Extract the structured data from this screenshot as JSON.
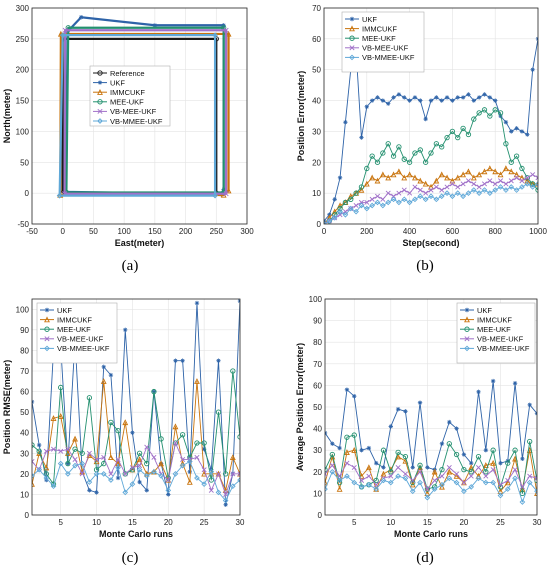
{
  "colors": {
    "reference": "#1a1a1a",
    "ukf": "#2e63a8",
    "immcukf": "#c9740d",
    "meeukf": "#23906f",
    "vbmeeukf": "#a070c8",
    "vbmmeeukf": "#5fa8d8"
  },
  "chart_data": [
    {
      "type": "line",
      "panel_label": "(a)",
      "xlabel": "East(meter)",
      "ylabel": "North(meter)",
      "xlim": [
        -50,
        300
      ],
      "ylim": [
        -50,
        300
      ],
      "xticks": [
        "-50",
        "0",
        "50",
        "100",
        "150",
        "200",
        "250",
        "300"
      ],
      "yticks": [
        "-50",
        "0",
        "50",
        "100",
        "150",
        "200",
        "250",
        "300"
      ],
      "grid": true,
      "legend": "middle",
      "series": [
        {
          "name": "Reference",
          "color_key": "reference",
          "marker": "circle",
          "x": [
            0,
            0,
            250,
            250,
            0
          ],
          "y": [
            0,
            250,
            250,
            0,
            0
          ]
        },
        {
          "name": "UKF",
          "color_key": "ukf",
          "marker": "star",
          "x": [
            5,
            8,
            30,
            150,
            262,
            262,
            258,
            5
          ],
          "y": [
            2,
            262,
            285,
            272,
            272,
            6,
            -2,
            2
          ]
        },
        {
          "name": "IMMCUKF",
          "color_key": "immcukf",
          "marker": "triangle",
          "x": [
            -4,
            -3,
            270,
            270,
            262,
            -4
          ],
          "y": [
            -3,
            258,
            258,
            4,
            -3,
            -3
          ]
        },
        {
          "name": "MEE-UKF",
          "color_key": "meeukf",
          "marker": "circle",
          "x": [
            6,
            9,
            262,
            262,
            6
          ],
          "y": [
            1,
            268,
            268,
            1,
            1
          ]
        },
        {
          "name": "VB-MEE-UKF",
          "color_key": "vbmeeukf",
          "marker": "x",
          "x": [
            3,
            4,
            266,
            266,
            3
          ],
          "y": [
            -1,
            264,
            264,
            -1,
            -1
          ]
        },
        {
          "name": "VB-MMEE-UKF",
          "color_key": "vbmmeeukf",
          "marker": "diamond",
          "x": [
            -5,
            0,
            248,
            248,
            -5
          ],
          "y": [
            -4,
            256,
            256,
            -4,
            -4
          ]
        }
      ]
    },
    {
      "type": "line",
      "panel_label": "(b)",
      "xlabel": "Step(second)",
      "ylabel": "Position Error(meter)",
      "xlim": [
        0,
        1000
      ],
      "ylim": [
        0,
        70
      ],
      "xticks": [
        "0",
        "200",
        "400",
        "600",
        "800",
        "1000"
      ],
      "yticks": [
        "0",
        "10",
        "20",
        "30",
        "40",
        "50",
        "60",
        "70"
      ],
      "grid": true,
      "legend": "top-left",
      "x": [
        0,
        25,
        50,
        75,
        100,
        125,
        150,
        175,
        200,
        225,
        250,
        275,
        300,
        325,
        350,
        375,
        400,
        425,
        450,
        475,
        500,
        525,
        550,
        575,
        600,
        625,
        650,
        675,
        700,
        725,
        750,
        775,
        800,
        825,
        850,
        875,
        900,
        925,
        950,
        975,
        1000
      ],
      "series": [
        {
          "name": "UKF",
          "color_key": "ukf",
          "marker": "star",
          "values": [
            1,
            3,
            8,
            15,
            33,
            50,
            56,
            28,
            38,
            40,
            41,
            40,
            39,
            41,
            42,
            41,
            40,
            41,
            40,
            34,
            40,
            41,
            40,
            41,
            40,
            41,
            41,
            42,
            40,
            41,
            42,
            41,
            40,
            35,
            33,
            30,
            31,
            30,
            29,
            50,
            60
          ]
        },
        {
          "name": "IMMCUKF",
          "color_key": "immcukf",
          "marker": "triangle",
          "values": [
            0,
            2,
            4,
            6,
            7,
            9,
            10,
            11,
            13,
            15,
            14,
            16,
            15,
            16,
            17,
            15,
            16,
            15,
            14,
            13,
            12,
            14,
            16,
            15,
            14,
            15,
            16,
            17,
            15,
            16,
            17,
            18,
            17,
            16,
            18,
            17,
            16,
            15,
            14,
            13,
            13
          ]
        },
        {
          "name": "MEE-UKF",
          "color_key": "meeukf",
          "marker": "circle",
          "values": [
            0,
            1,
            3,
            5,
            7,
            8,
            10,
            12,
            18,
            22,
            20,
            23,
            26,
            22,
            25,
            21,
            20,
            23,
            24,
            20,
            23,
            26,
            25,
            28,
            30,
            28,
            31,
            29,
            34,
            36,
            37,
            35,
            37,
            36,
            26,
            20,
            22,
            18,
            15,
            13,
            11
          ]
        },
        {
          "name": "VB-MEE-UKF",
          "color_key": "vbmeeukf",
          "marker": "x",
          "values": [
            0,
            1,
            2,
            3,
            4,
            5,
            6,
            7,
            7,
            8,
            9,
            8,
            10,
            9,
            10,
            11,
            10,
            12,
            11,
            10,
            11,
            12,
            11,
            12,
            13,
            12,
            13,
            14,
            13,
            12,
            13,
            14,
            13,
            14,
            13,
            14,
            15,
            14,
            15,
            16,
            15
          ]
        },
        {
          "name": "VB-MMEE-UKF",
          "color_key": "vbmmeeukf",
          "marker": "diamond",
          "values": [
            0,
            1,
            2,
            4,
            3,
            5,
            4,
            6,
            5,
            6,
            7,
            6,
            7,
            8,
            7,
            8,
            7,
            8,
            9,
            8,
            9,
            8,
            9,
            10,
            9,
            10,
            9,
            10,
            11,
            10,
            11,
            10,
            11,
            12,
            11,
            12,
            11,
            12,
            13,
            12,
            13
          ]
        }
      ]
    },
    {
      "type": "line",
      "panel_label": "(c)",
      "xlabel": "Monte Carlo runs",
      "ylabel": "Position RMSE(meter)",
      "xlim": [
        1,
        30
      ],
      "ylim": [
        0,
        105
      ],
      "xticks": [
        "5",
        "10",
        "15",
        "20",
        "25",
        "30"
      ],
      "yticks": [
        "0",
        "10",
        "20",
        "30",
        "40",
        "50",
        "60",
        "70",
        "80",
        "90",
        "100"
      ],
      "grid": true,
      "legend": "top-left",
      "x": [
        1,
        2,
        3,
        4,
        5,
        6,
        7,
        8,
        9,
        10,
        11,
        12,
        13,
        14,
        15,
        16,
        17,
        18,
        19,
        20,
        21,
        22,
        23,
        24,
        25,
        26,
        27,
        28,
        29,
        30
      ],
      "series": [
        {
          "name": "UKF",
          "color_key": "ukf",
          "marker": "star",
          "values": [
            55,
            34,
            17,
            80,
            82,
            25,
            85,
            21,
            12,
            11,
            72,
            68,
            18,
            90,
            40,
            16,
            12,
            60,
            25,
            10,
            75,
            75,
            21,
            103,
            32,
            22,
            75,
            5,
            20,
            104
          ]
        },
        {
          "name": "IMMCUKF",
          "color_key": "immcukf",
          "marker": "triangle",
          "values": [
            15,
            30,
            23,
            47,
            48,
            30,
            37,
            21,
            29,
            26,
            65,
            28,
            25,
            45,
            22,
            27,
            20,
            21,
            25,
            17,
            43,
            25,
            16,
            65,
            20,
            20,
            20,
            12,
            28,
            20
          ]
        },
        {
          "name": "MEE-UKF",
          "color_key": "meeukf",
          "marker": "circle",
          "values": [
            34,
            31,
            20,
            15,
            62,
            25,
            32,
            30,
            57,
            22,
            25,
            45,
            41,
            20,
            22,
            30,
            25,
            60,
            37,
            18,
            35,
            39,
            28,
            35,
            35,
            17,
            50,
            20,
            70,
            38
          ]
        },
        {
          "name": "VB-MEE-UKF",
          "color_key": "vbmeeukf",
          "marker": "x",
          "values": [
            26,
            22,
            31,
            32,
            31,
            32,
            27,
            20,
            30,
            27,
            28,
            20,
            27,
            20,
            23,
            24,
            33,
            28,
            20,
            17,
            35,
            27,
            27,
            28,
            22,
            12,
            20,
            10,
            20,
            20
          ]
        },
        {
          "name": "VB-MMEE-UKF",
          "color_key": "vbmmeeukf",
          "marker": "diamond",
          "values": [
            19,
            22,
            18,
            14,
            25,
            20,
            24,
            25,
            16,
            20,
            20,
            17,
            23,
            11,
            15,
            22,
            19,
            21,
            19,
            12,
            20,
            24,
            26,
            18,
            15,
            21,
            11,
            7,
            14,
            17
          ]
        }
      ]
    },
    {
      "type": "line",
      "panel_label": "(d)",
      "xlabel": "Monte Carlo runs",
      "ylabel": "Average Position Error(meter)",
      "xlim": [
        1,
        30
      ],
      "ylim": [
        0,
        100
      ],
      "xticks": [
        "5",
        "10",
        "15",
        "20",
        "25",
        "30"
      ],
      "yticks": [
        "0",
        "10",
        "20",
        "30",
        "40",
        "50",
        "60",
        "70",
        "80",
        "90",
        "100"
      ],
      "grid": true,
      "legend": "top-right",
      "x": [
        1,
        2,
        3,
        4,
        5,
        6,
        7,
        8,
        9,
        10,
        11,
        12,
        13,
        14,
        15,
        16,
        17,
        18,
        19,
        20,
        21,
        22,
        23,
        24,
        25,
        26,
        27,
        28,
        29,
        30
      ],
      "series": [
        {
          "name": "UKF",
          "color_key": "ukf",
          "marker": "star",
          "values": [
            38,
            33,
            31,
            58,
            55,
            30,
            31,
            24,
            22,
            41,
            49,
            48,
            22,
            52,
            22,
            21,
            33,
            43,
            40,
            28,
            24,
            57,
            30,
            62,
            24,
            25,
            61,
            26,
            51,
            47
          ]
        },
        {
          "name": "IMMCUKF",
          "color_key": "immcukf",
          "marker": "triangle",
          "values": [
            15,
            27,
            12,
            29,
            30,
            18,
            22,
            12,
            19,
            21,
            27,
            25,
            14,
            22,
            10,
            20,
            13,
            20,
            18,
            15,
            22,
            18,
            23,
            24,
            11,
            15,
            26,
            12,
            30,
            10
          ]
        },
        {
          "name": "MEE-UKF",
          "color_key": "meeukf",
          "marker": "circle",
          "values": [
            21,
            28,
            15,
            36,
            37,
            13,
            14,
            16,
            30,
            20,
            29,
            27,
            15,
            23,
            12,
            13,
            21,
            33,
            28,
            21,
            20,
            27,
            20,
            30,
            13,
            24,
            30,
            10,
            34,
            16
          ]
        },
        {
          "name": "VB-MEE-UKF",
          "color_key": "vbmeeukf",
          "marker": "x",
          "values": [
            19,
            23,
            18,
            24,
            22,
            16,
            18,
            14,
            17,
            18,
            22,
            19,
            16,
            20,
            12,
            16,
            18,
            22,
            19,
            15,
            18,
            22,
            18,
            21,
            14,
            16,
            21,
            13,
            18,
            17
          ]
        },
        {
          "name": "VB-MMEE-UKF",
          "color_key": "vbmmeeukf",
          "marker": "diamond",
          "values": [
            12,
            20,
            16,
            18,
            15,
            13,
            14,
            12,
            16,
            15,
            18,
            17,
            11,
            15,
            8,
            12,
            14,
            17,
            15,
            11,
            13,
            17,
            15,
            15,
            9,
            12,
            17,
            6,
            15,
            11
          ]
        }
      ]
    }
  ]
}
